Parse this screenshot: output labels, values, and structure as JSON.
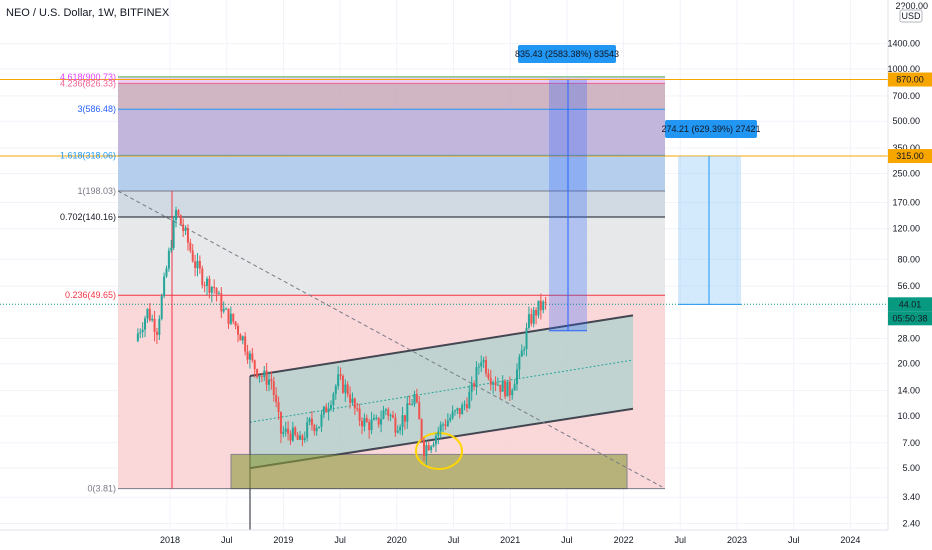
{
  "header": {
    "title": "NEO / U.S. Dollar, 1W, BITFINEX"
  },
  "price_axis": {
    "currency": "USD",
    "top_label": "2?00.00",
    "ticks": [
      "1400.00",
      "1000.00",
      "700.00",
      "500.00",
      "350.00",
      "250.00",
      "170.00",
      "120.00",
      "80.00",
      "56.00",
      "28.00",
      "20.00",
      "14.00",
      "10.00",
      "7.00",
      "5.00",
      "3.40",
      "2.40"
    ]
  },
  "time_axis": {
    "ticks": [
      "2018",
      "Jul",
      "2019",
      "Jul",
      "2020",
      "Jul",
      "2021",
      "Jul",
      "2022",
      "Jul",
      "2023",
      "Jul",
      "2024"
    ]
  },
  "fib_levels": [
    {
      "label": "4.618(900.73)",
      "color": "#e040fb"
    },
    {
      "label": "4.236(826.33)",
      "color": "#f06292"
    },
    {
      "label": "3(586.48)",
      "color": "#2962ff"
    },
    {
      "label": "1.618(318.06)",
      "color": "#2196f3"
    },
    {
      "label": "1(198.03)",
      "color": "#787b86"
    },
    {
      "label": "0.702(140.16)",
      "color": "#131722"
    },
    {
      "label": "0.236(49.65)",
      "color": "#f23645"
    },
    {
      "label": "0(3.81)",
      "color": "#787b86"
    }
  ],
  "price_markers": [
    {
      "label": "870.00",
      "color": "#f7a600"
    },
    {
      "label": "315.00",
      "color": "#f7a600"
    },
    {
      "label": "44.01",
      "color": "#089981"
    },
    {
      "label": "05:50:38",
      "color": "#089981"
    }
  ],
  "measure_labels": [
    {
      "label": "835.43 (2583.38%) 83543",
      "color": "#2196f3"
    },
    {
      "label": "274.21 (629.39%) 27421",
      "color": "#2196f3"
    }
  ],
  "chart_data": {
    "type": "candlestick",
    "title": "NEO / U.S. Dollar, 1W, BITFINEX",
    "y_scale": "log",
    "ylim": [
      2.2,
      2500
    ],
    "x": [
      "2017-09",
      "2017-10",
      "2017-11",
      "2017-12",
      "2018-01",
      "2018-02",
      "2018-03",
      "2018-04",
      "2018-05",
      "2018-06",
      "2018-07",
      "2018-08",
      "2018-09",
      "2018-10",
      "2018-11",
      "2018-12",
      "2019-01",
      "2019-02",
      "2019-03",
      "2019-04",
      "2019-05",
      "2019-06",
      "2019-07",
      "2019-08",
      "2019-09",
      "2019-10",
      "2019-11",
      "2019-12",
      "2020-01",
      "2020-02",
      "2020-03",
      "2020-04",
      "2020-05",
      "2020-06",
      "2020-07",
      "2020-08",
      "2020-09",
      "2020-10",
      "2020-11",
      "2020-12",
      "2021-01",
      "2021-02",
      "2021-03",
      "2021-04"
    ],
    "close": [
      30,
      40,
      32,
      70,
      150,
      110,
      75,
      60,
      55,
      40,
      35,
      28,
      20,
      17,
      16,
      8,
      8,
      7,
      9,
      9,
      12,
      16,
      14,
      10,
      9,
      9,
      11,
      9,
      10,
      13,
      6.5,
      7.5,
      9,
      10,
      11,
      14,
      22,
      17,
      15,
      14,
      20,
      35,
      42,
      44
    ],
    "annotations": [
      "4.618(900.73)",
      "4.236(826.33)",
      "3(586.48)",
      "1.618(318.06)",
      "1(198.03)",
      "0.702(140.16)",
      "0.236(49.65)",
      "0(3.81)",
      "835.43 (2583.38%) 83543",
      "274.21 (629.39%) 27421"
    ]
  }
}
